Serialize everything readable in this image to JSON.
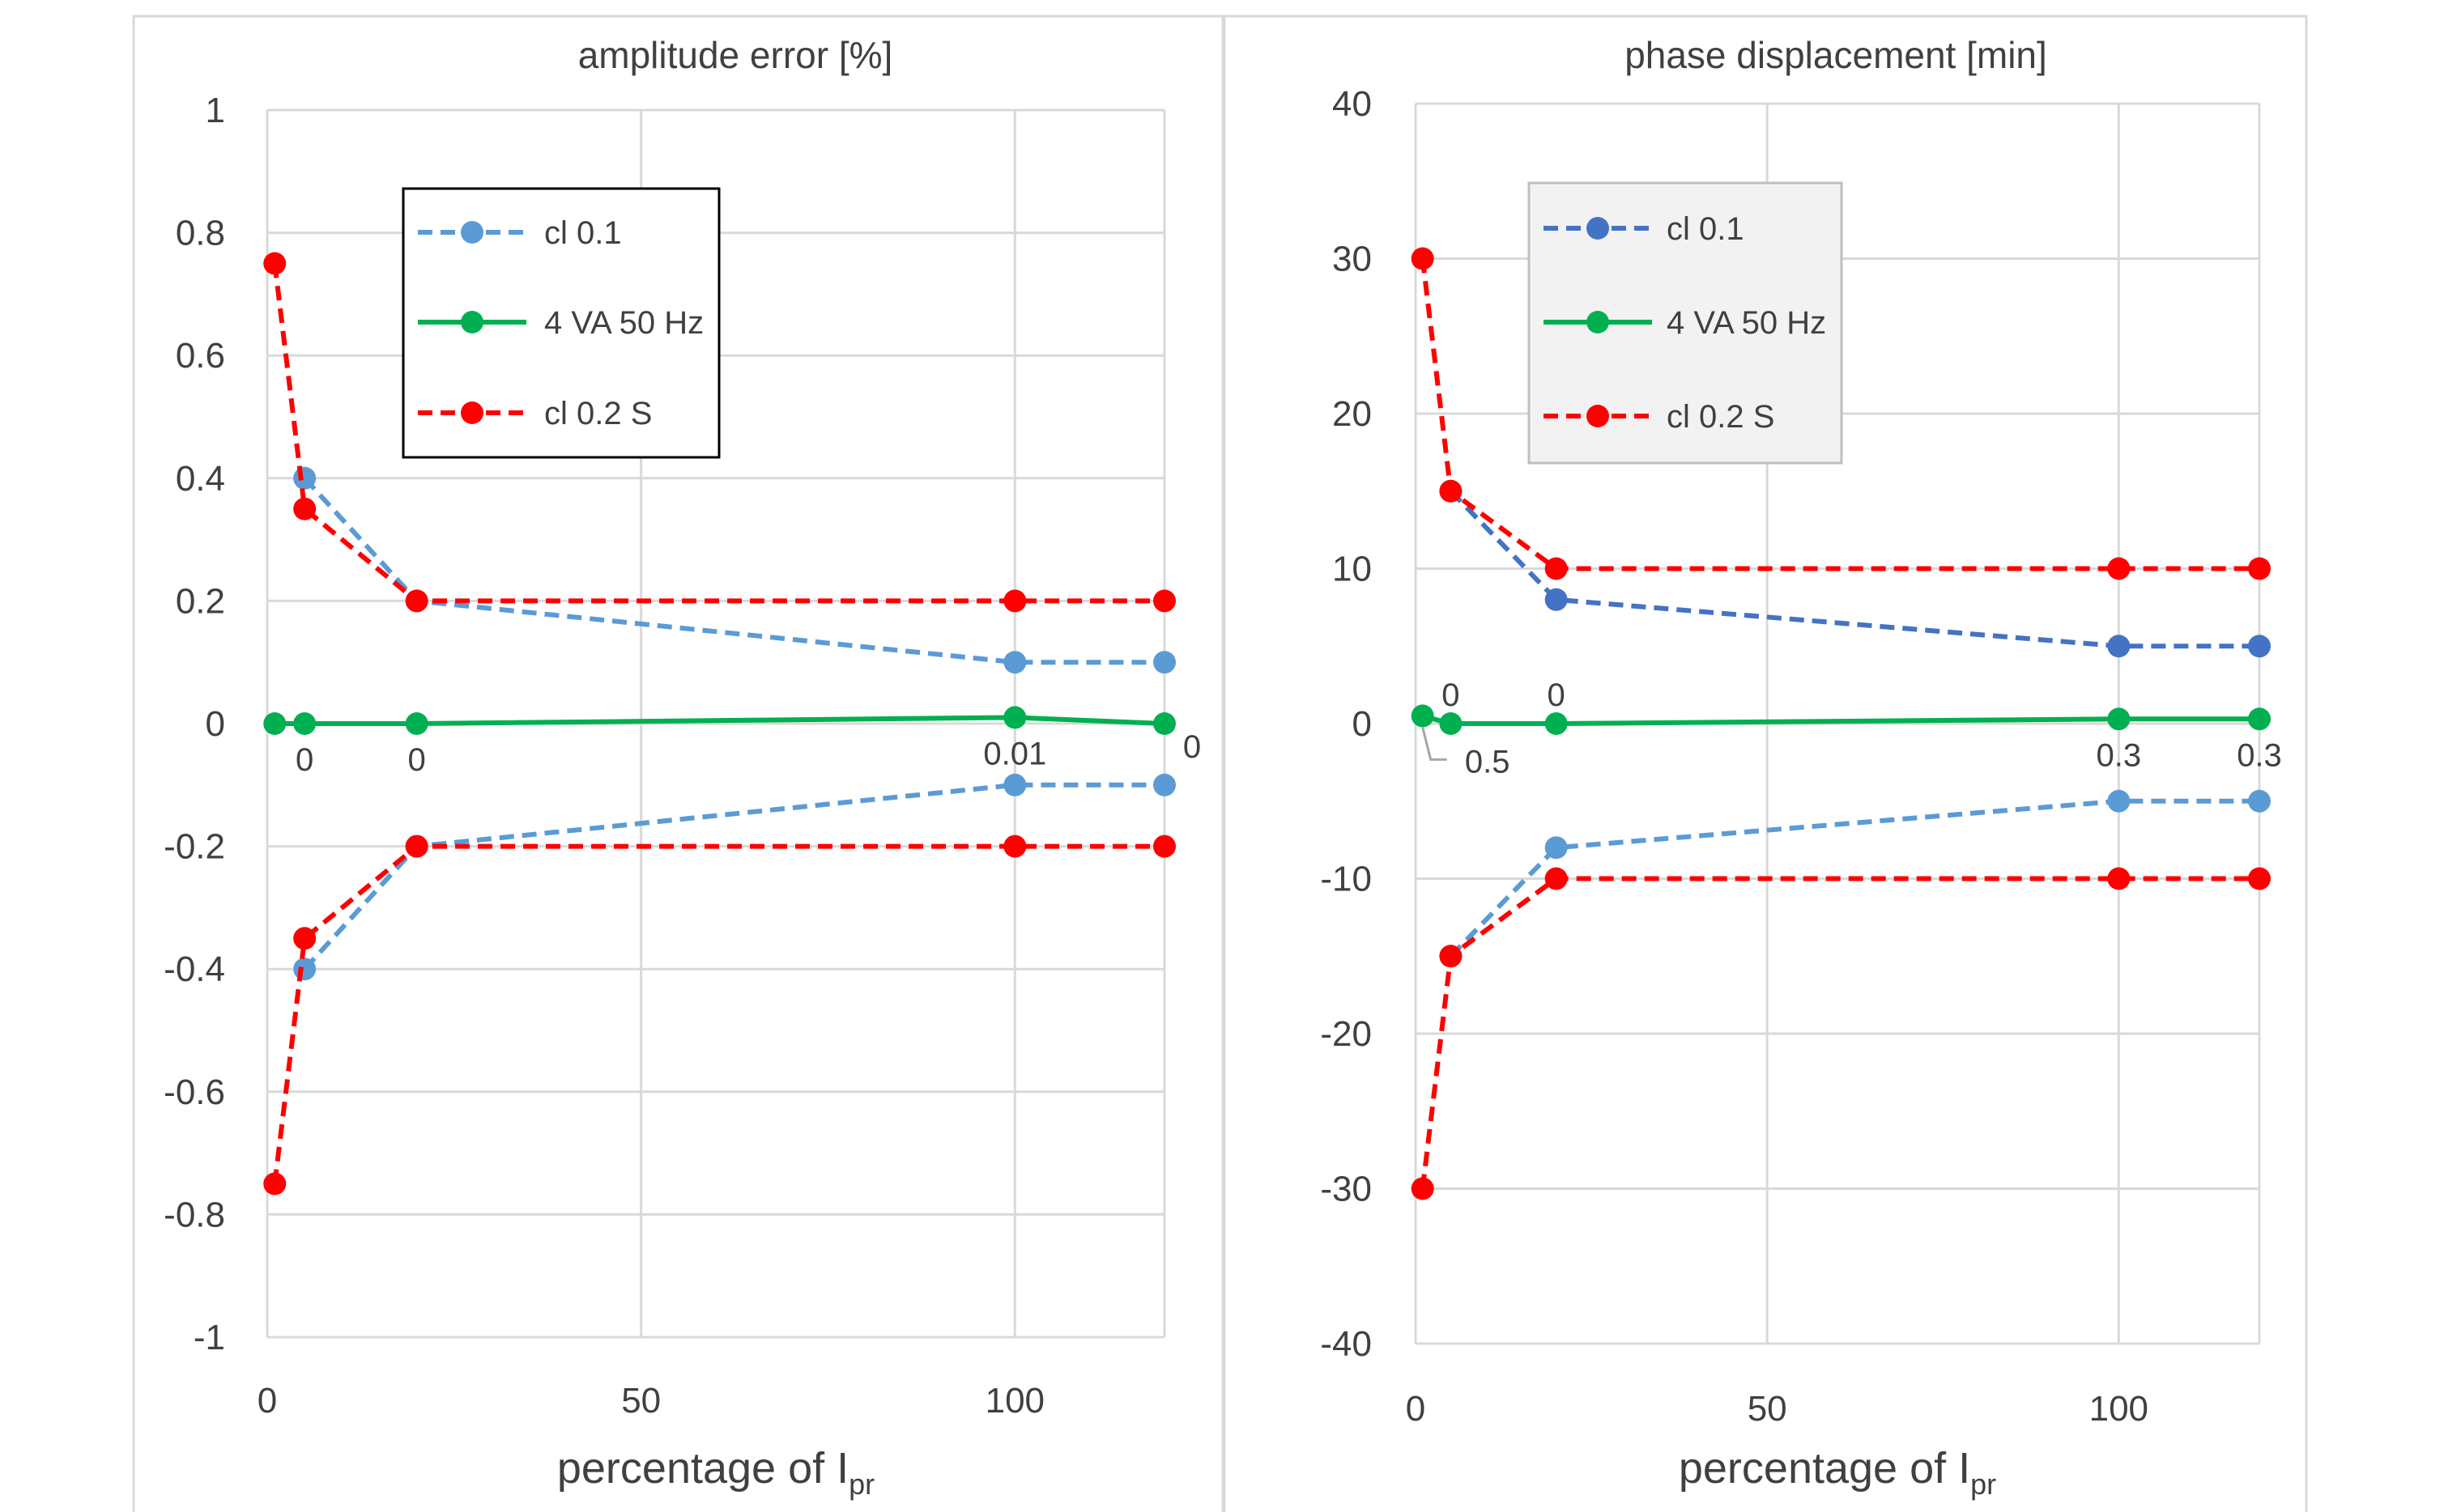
{
  "chart_data": [
    {
      "type": "line",
      "title": "amplitude error [%]",
      "xlabel_main": "percentage of I",
      "xlabel_sub": "pr",
      "ylabel": "",
      "xlim": [
        0,
        120
      ],
      "ylim": [
        -1,
        1
      ],
      "xticks": [
        0,
        50,
        100
      ],
      "yticks": [
        -1,
        -0.8,
        -0.6,
        -0.4,
        -0.2,
        0,
        0.2,
        0.4,
        0.6,
        0.8,
        1
      ],
      "ytick_labels": [
        "-1",
        "-0.8",
        "-0.6",
        "-0.4",
        "-0.2",
        "0",
        "0.2",
        "0.4",
        "0.6",
        "0.8",
        "1"
      ],
      "grid": true,
      "legend_position": "top-center",
      "series": [
        {
          "name": "cl 0.1",
          "color": "#5B9BD5",
          "style": "dashed",
          "in_legend": true,
          "x": [
            5,
            20,
            100,
            120
          ],
          "y": [
            0.4,
            0.2,
            0.1,
            0.1
          ]
        },
        {
          "name": "cl 0.1",
          "color": "#5B9BD5",
          "style": "dashed",
          "in_legend": false,
          "x": [
            5,
            20,
            100,
            120
          ],
          "y": [
            -0.4,
            -0.2,
            -0.1,
            -0.1
          ]
        },
        {
          "name": "4 VA 50 Hz",
          "color": "#00B050",
          "style": "solid",
          "in_legend": true,
          "x": [
            1,
            5,
            20,
            100,
            120
          ],
          "y": [
            0,
            0,
            0,
            0.01,
            0
          ]
        },
        {
          "name": "cl 0.2 S",
          "color": "#FF0000",
          "style": "dashed",
          "in_legend": true,
          "x": [
            1,
            5,
            20,
            100,
            120
          ],
          "y": [
            0.75,
            0.35,
            0.2,
            0.2,
            0.2
          ]
        },
        {
          "name": "cl 0.2 S",
          "color": "#FF0000",
          "style": "dashed",
          "in_legend": false,
          "x": [
            1,
            5,
            20,
            100,
            120
          ],
          "y": [
            -0.75,
            -0.35,
            -0.2,
            -0.2,
            -0.2
          ]
        }
      ],
      "data_labels": [
        {
          "x": 5,
          "y": 0,
          "text": "0",
          "pos": "below"
        },
        {
          "x": 20,
          "y": 0,
          "text": "0",
          "pos": "below"
        },
        {
          "x": 100,
          "y": 0.01,
          "text": "0.01",
          "pos": "below"
        },
        {
          "x": 120,
          "y": 0,
          "text": "0",
          "pos": "below-right"
        }
      ]
    },
    {
      "type": "line",
      "title": "phase displacement [min]",
      "xlabel_main": "percentage of I",
      "xlabel_sub": "pr",
      "ylabel": "",
      "xlim": [
        0,
        120
      ],
      "ylim": [
        -40,
        40
      ],
      "xticks": [
        0,
        50,
        100
      ],
      "yticks": [
        -40,
        -30,
        -20,
        -10,
        0,
        10,
        20,
        30,
        40
      ],
      "ytick_labels": [
        "-40",
        "-30",
        "-20",
        "-10",
        "0",
        "10",
        "20",
        "30",
        "40"
      ],
      "grid": true,
      "legend_position": "top-center",
      "series": [
        {
          "name": "cl 0.1",
          "color": "#4472C4",
          "style": "dashed",
          "in_legend": true,
          "x": [
            5,
            20,
            100,
            120
          ],
          "y": [
            15,
            8,
            5,
            5
          ]
        },
        {
          "name": "cl 0.1",
          "color": "#5B9BD5",
          "style": "dashed",
          "in_legend": false,
          "x": [
            5,
            20,
            100,
            120
          ],
          "y": [
            -15,
            -8,
            -5,
            -5
          ]
        },
        {
          "name": "4 VA 50 Hz",
          "color": "#00B050",
          "style": "solid",
          "in_legend": true,
          "x": [
            1,
            5,
            20,
            100,
            120
          ],
          "y": [
            0.5,
            0,
            0,
            0.3,
            0.3
          ]
        },
        {
          "name": "cl 0.2 S",
          "color": "#FF0000",
          "style": "dashed",
          "in_legend": true,
          "x": [
            1,
            5,
            20,
            100,
            120
          ],
          "y": [
            30,
            15,
            10,
            10,
            10
          ]
        },
        {
          "name": "cl 0.2 S",
          "color": "#FF0000",
          "style": "dashed",
          "in_legend": false,
          "x": [
            1,
            5,
            20,
            100,
            120
          ],
          "y": [
            -30,
            -15,
            -10,
            -10,
            -10
          ]
        }
      ],
      "data_labels": [
        {
          "x": 1,
          "y": 0.5,
          "text": "0.5",
          "pos": "callout"
        },
        {
          "x": 5,
          "y": 0,
          "text": "0",
          "pos": "above"
        },
        {
          "x": 20,
          "y": 0,
          "text": "0",
          "pos": "above"
        },
        {
          "x": 100,
          "y": 0.3,
          "text": "0.3",
          "pos": "below"
        },
        {
          "x": 120,
          "y": 0.3,
          "text": "0.3",
          "pos": "below"
        }
      ]
    }
  ]
}
